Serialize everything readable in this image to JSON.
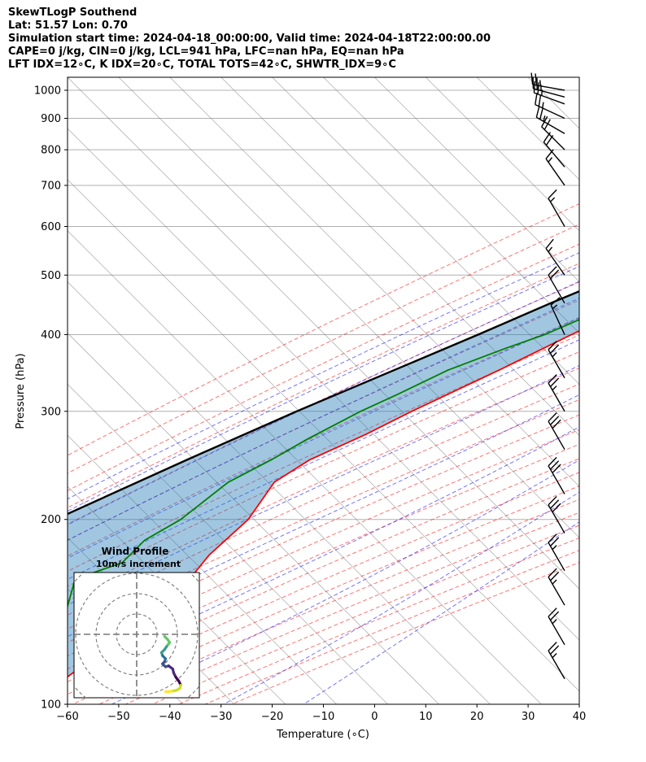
{
  "title_lines": [
    "SkewTLogP Southend",
    "Lat: 51.57   Lon: 0.70",
    "Simulation start time: 2024-04-18_00:00:00, Valid time: 2024-04-18T22:00:00.00",
    "CAPE=0 j/kg, CIN=0 j/kg, LCL=941 hPa, LFC=nan hPa, EQ=nan hPa",
    "LFT IDX=12∘C, K IDX=20∘C, TOTAL TOTS=42∘C, SHWTR_IDX=9∘C"
  ],
  "chart_data": {
    "type": "skewt",
    "xlabel": "Temperature (∘C)",
    "ylabel": "Pressure (hPa)",
    "xlim": [
      -60,
      40
    ],
    "ylim": [
      1050,
      100
    ],
    "y_scale": "log",
    "x_ticks": [
      -60,
      -50,
      -40,
      -30,
      -20,
      -10,
      0,
      10,
      20,
      30,
      40
    ],
    "x_tick_labels": [
      "−60",
      "−50",
      "−40",
      "−30",
      "−20",
      "−10",
      "0",
      "10",
      "20",
      "30",
      "40"
    ],
    "y_ticks": [
      1000,
      900,
      800,
      700,
      600,
      500,
      400,
      300,
      200,
      100
    ],
    "y_tick_labels": [
      "1000",
      "900",
      "800",
      "700",
      "600",
      "500",
      "400",
      "300",
      "200",
      "100"
    ],
    "skew_deg": 45,
    "grid": true,
    "colors": {
      "temperature": "#ff0000",
      "dewpoint": "#008000",
      "parcel": "#000000",
      "cape_fill": "#1f77b4",
      "dry_adiabat": "#ff0000",
      "moist_adiabat": "#0000ff",
      "mixing_ratio": "#800080",
      "isotherm": "#808080"
    },
    "series": [
      {
        "key": "temperature",
        "p": [
          1000,
          975,
          950,
          925,
          900,
          875,
          850,
          800,
          750,
          700,
          650,
          600,
          550,
          500,
          450,
          400,
          350,
          300,
          275,
          250,
          230,
          200,
          175,
          150,
          140,
          125,
          110,
          100
        ],
        "t": [
          7.5,
          6.8,
          6.6,
          7.2,
          5.3,
          3.9,
          2.5,
          0.4,
          -2.3,
          -4.8,
          -8.3,
          -11.8,
          -16.3,
          -21.2,
          -26.5,
          -33.8,
          -41.0,
          -50.0,
          -54.5,
          -60.5,
          -63.0,
          -60.8,
          -61.5,
          -60.0,
          -59.5,
          -63.0,
          -65.5,
          -67.0
        ]
      },
      {
        "key": "dewpoint",
        "p": [
          1000,
          975,
          950,
          925,
          900,
          875,
          850,
          800,
          750,
          700,
          650,
          600,
          550,
          500,
          450,
          400,
          380,
          350,
          320,
          300,
          270,
          250,
          230,
          200,
          185,
          170,
          160,
          140,
          120,
          100
        ],
        "t": [
          4.3,
          4.6,
          4.8,
          4.1,
          3.4,
          3.3,
          2.9,
          0.2,
          -3.0,
          -6.5,
          -10.3,
          -14.5,
          -19.5,
          -25.0,
          -31.0,
          -39.0,
          -44.0,
          -51.0,
          -56.0,
          -60.0,
          -65.0,
          -68.0,
          -72.0,
          -74.0,
          -77.0,
          -77.0,
          -83.0,
          -78.0,
          -73.0,
          -72.0
        ]
      },
      {
        "key": "parcel",
        "p": [
          1010,
          975,
          941,
          900,
          850,
          800,
          750,
          700,
          650,
          600,
          550,
          500,
          450,
          400,
          350,
          300,
          250,
          200,
          150,
          100
        ],
        "t": [
          9.5,
          6.6,
          3.7,
          1.1,
          -2.1,
          -5.5,
          -9.4,
          -13.5,
          -18.2,
          -23.5,
          -29.5,
          -36.3,
          -44.0,
          -52.0,
          -61.5,
          -72.5,
          -84.5,
          -98.5,
          -115.0,
          -138.0
        ]
      }
    ],
    "wind_barbs": [
      {
        "p": 1000,
        "speed_kt": 25,
        "dir_deg": 280
      },
      {
        "p": 975,
        "speed_kt": 25,
        "dir_deg": 285
      },
      {
        "p": 950,
        "speed_kt": 25,
        "dir_deg": 290
      },
      {
        "p": 900,
        "speed_kt": 25,
        "dir_deg": 295
      },
      {
        "p": 850,
        "speed_kt": 25,
        "dir_deg": 300
      },
      {
        "p": 800,
        "speed_kt": 20,
        "dir_deg": 315
      },
      {
        "p": 750,
        "speed_kt": 20,
        "dir_deg": 320
      },
      {
        "p": 700,
        "speed_kt": 15,
        "dir_deg": 325
      },
      {
        "p": 600,
        "speed_kt": 15,
        "dir_deg": 330
      },
      {
        "p": 500,
        "speed_kt": 15,
        "dir_deg": 325
      },
      {
        "p": 450,
        "speed_kt": 20,
        "dir_deg": 330
      },
      {
        "p": 400,
        "speed_kt": 15,
        "dir_deg": 335
      },
      {
        "p": 340,
        "speed_kt": 25,
        "dir_deg": 330
      },
      {
        "p": 300,
        "speed_kt": 25,
        "dir_deg": 330
      },
      {
        "p": 260,
        "speed_kt": 30,
        "dir_deg": 330
      },
      {
        "p": 220,
        "speed_kt": 30,
        "dir_deg": 330
      },
      {
        "p": 190,
        "speed_kt": 30,
        "dir_deg": 330
      },
      {
        "p": 165,
        "speed_kt": 25,
        "dir_deg": 330
      },
      {
        "p": 145,
        "speed_kt": 25,
        "dir_deg": 330
      },
      {
        "p": 125,
        "speed_kt": 25,
        "dir_deg": 330
      },
      {
        "p": 110,
        "speed_kt": 25,
        "dir_deg": 330
      }
    ],
    "hodograph": {
      "title": "Wind Profile",
      "subtitle": "10m/s increment",
      "ring_step_ms": 10,
      "u": [
        -1.5,
        0.0,
        1.0,
        -0.5,
        -1.5,
        -3.0,
        -2.5,
        -1.0,
        -1.5,
        -2.5,
        -1.0,
        0.5,
        2.5,
        3.0,
        4.0,
        5.5,
        6.5,
        6.0,
        4.5,
        2.0,
        0.0,
        -1.0
      ],
      "v": [
        -27.0,
        -25.5,
        -24.0,
        -22.0,
        -20.5,
        -19.0,
        -17.5,
        -16.0,
        -14.5,
        -13.5,
        -12.0,
        -12.5,
        -11.0,
        -9.0,
        -7.0,
        -5.0,
        -3.0,
        -1.5,
        -0.5,
        0.0,
        0.2,
        0.2
      ],
      "colormap": [
        "#5ec962",
        "#3b9a8c",
        "#2c718e",
        "#3b528b",
        "#472a7a",
        "#440154",
        "#c8e020",
        "#fde725"
      ]
    }
  }
}
